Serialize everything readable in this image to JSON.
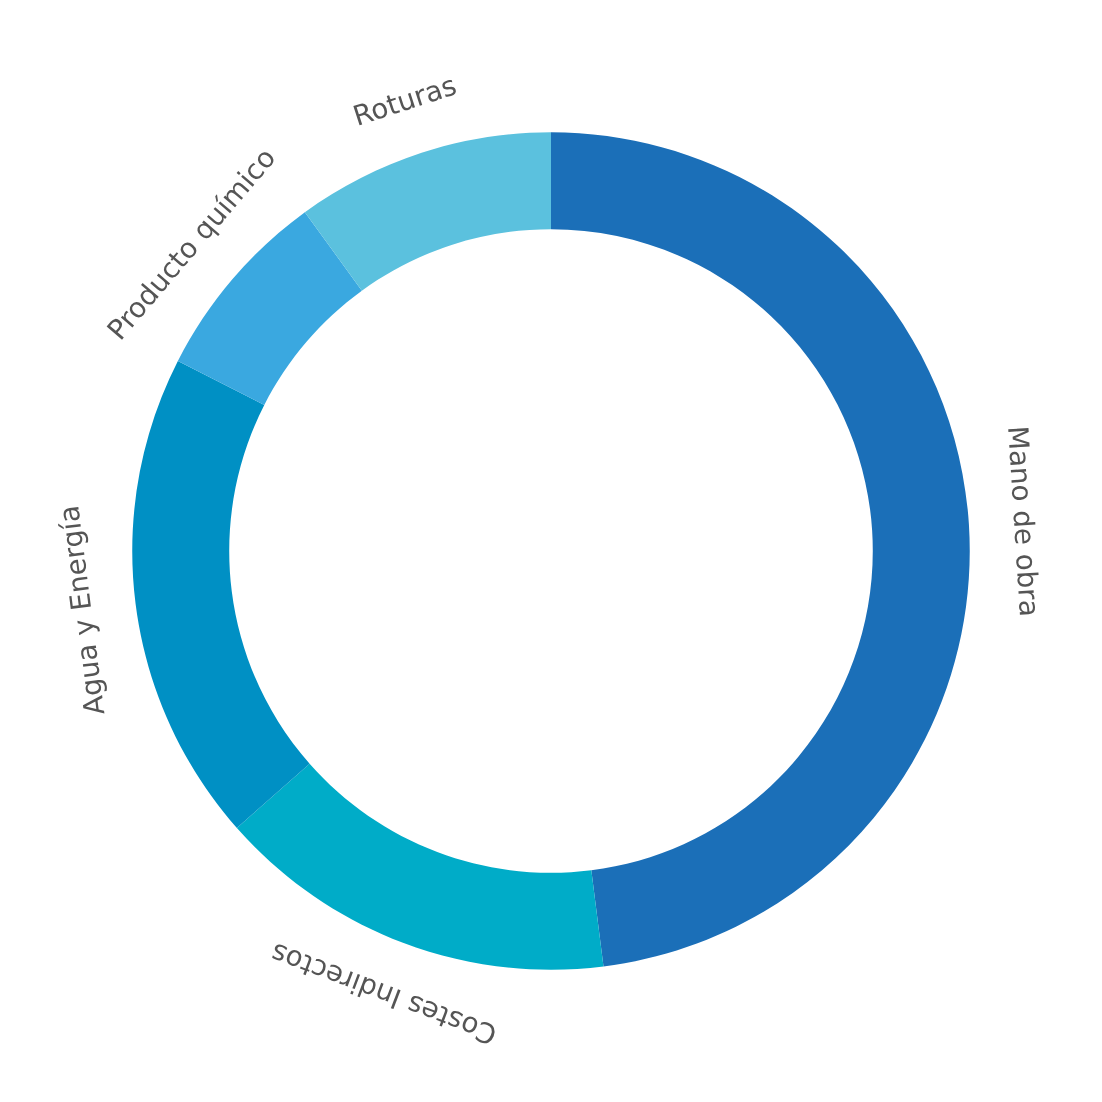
{
  "chart_data": {
    "type": "donut",
    "categories": [
      "Mano de obra",
      "Costes Indirectos",
      "Agua y Energía",
      "Producto químico",
      "Roturas"
    ],
    "values": [
      48,
      15.5,
      19,
      7.5,
      10
    ],
    "colors": [
      "#1b6fb8",
      "#00acc8",
      "#0090c4",
      "#3aa8e0",
      "#5bc1de"
    ]
  }
}
